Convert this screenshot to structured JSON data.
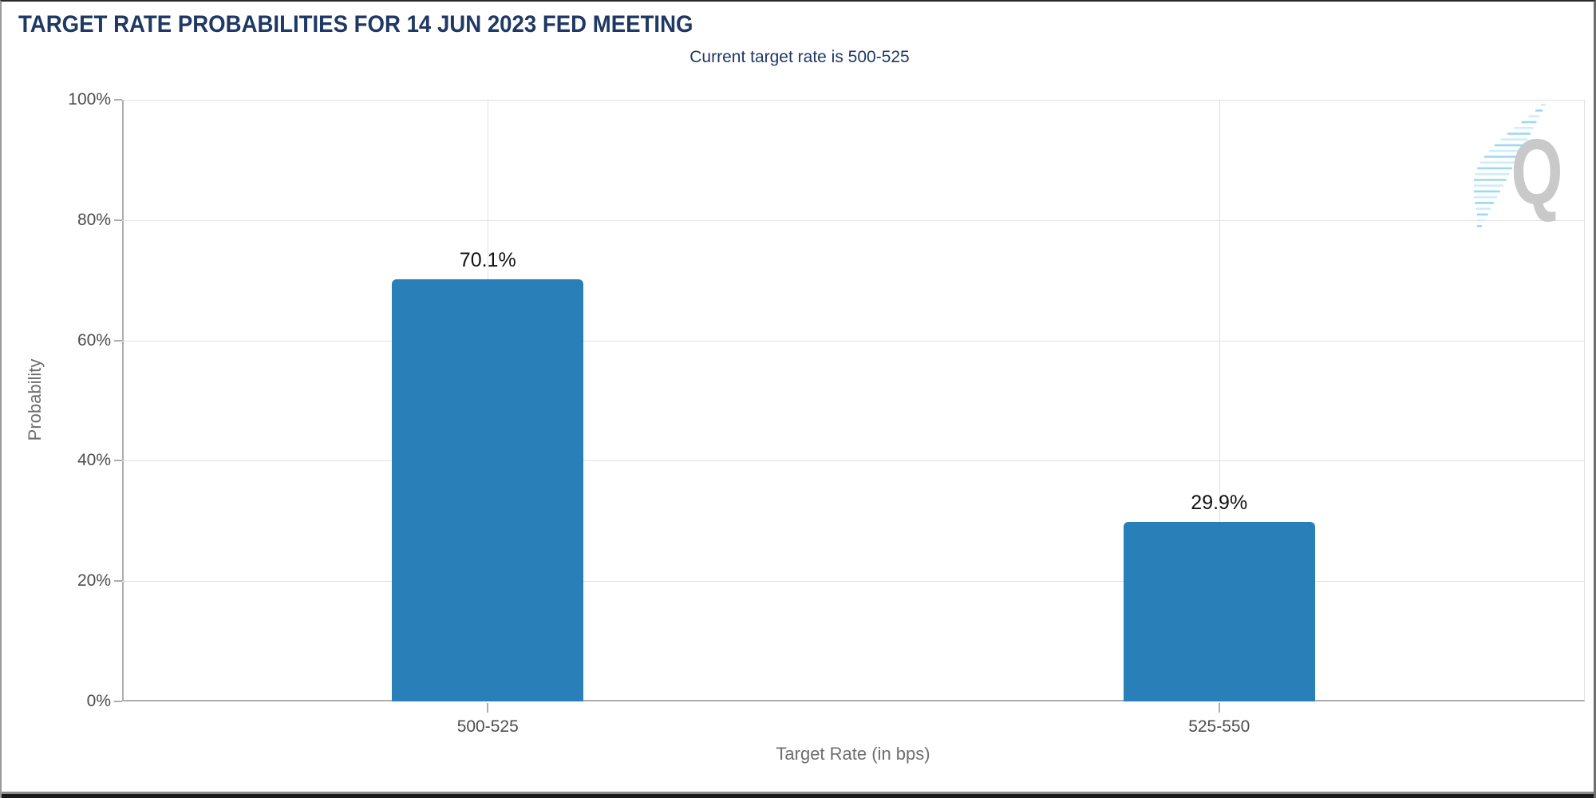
{
  "chart_data": {
    "type": "bar",
    "title": "TARGET RATE PROBABILITIES FOR 14 JUN 2023 FED MEETING",
    "subtitle": "Current target rate is 500-525",
    "categories": [
      "500-525",
      "525-550"
    ],
    "values": [
      70.1,
      29.9
    ],
    "value_labels": [
      "70.1%",
      "29.9%"
    ],
    "xlabel": "Target Rate (in bps)",
    "ylabel": "Probability",
    "ylim": [
      0,
      100
    ],
    "ytick_labels": [
      "0%",
      "20%",
      "40%",
      "60%",
      "80%",
      "100%"
    ],
    "grid": true,
    "legend": false,
    "bar_color": "#2980B9",
    "watermark_letter": "Q"
  },
  "colors": {
    "title_navy": "#1F3864",
    "bar_blue": "#2980B9",
    "grid_light": "#E1E1E1",
    "axis_line": "#ADADAD",
    "tick_label": "#4D4D4D",
    "axis_title": "#6E6E6E",
    "value_label": "#121212",
    "watermark_gray": "#C9C9C9",
    "watermark_blue": "#9FD8F2",
    "watermark_blue_light": "#CDEDFA"
  }
}
